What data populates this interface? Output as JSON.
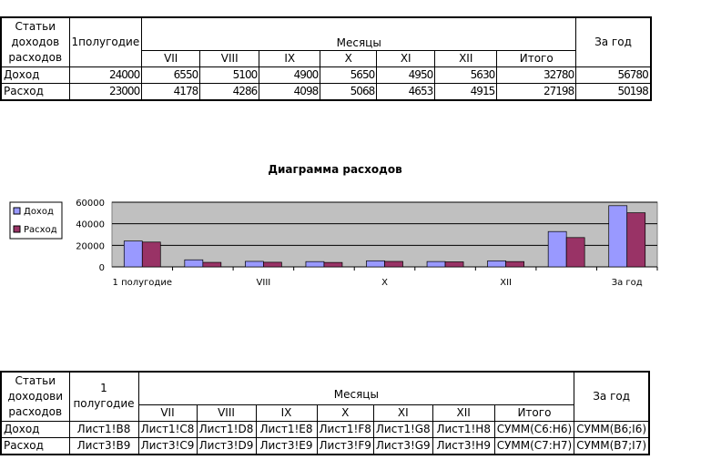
{
  "table1": {
    "header_row": "Статьи доходов расходов",
    "half": "1полугодие",
    "months_label": "Месяцы",
    "year": "За год",
    "months": [
      "VII",
      "VIII",
      "IX",
      "X",
      "XI",
      "XII",
      "Итого"
    ],
    "rows": [
      {
        "label": "Доход",
        "cells": [
          "24000",
          "6550",
          "5100",
          "4900",
          "5650",
          "4950",
          "5630",
          "32780",
          "56780"
        ]
      },
      {
        "label": "Расход",
        "cells": [
          "23000",
          "4178",
          "4286",
          "4098",
          "5068",
          "4653",
          "4915",
          "27198",
          "50198"
        ]
      }
    ]
  },
  "chart_data": {
    "type": "bar",
    "title": "Диаграмма расходов",
    "categories": [
      "1 полугодие",
      "VII",
      "VIII",
      "IX",
      "X",
      "XI",
      "XII",
      "Итого",
      "За год"
    ],
    "tick_labels": [
      "1 полугодие",
      "VIII",
      "X",
      "XII",
      "За год"
    ],
    "series": [
      {
        "name": "Доход",
        "color": "#9999ff",
        "values": [
          24000,
          6550,
          5100,
          4900,
          5650,
          4950,
          5630,
          32780,
          56780
        ]
      },
      {
        "name": "Расход",
        "color": "#993366",
        "values": [
          23000,
          4178,
          4286,
          4098,
          5068,
          4653,
          4915,
          27198,
          50198
        ]
      }
    ],
    "ylim": [
      0,
      60000
    ],
    "yticks": [
      "0",
      "20000",
      "40000",
      "60000"
    ],
    "legend": "left",
    "plot_bg": "#c0c0c0"
  },
  "table2": {
    "header_row": "Статьи доходови расходов",
    "half": "1 полугодие",
    "months_label": "Месяцы",
    "year": "За год",
    "months": [
      "VII",
      "VIII",
      "IX",
      "X",
      "XI",
      "XII",
      "Итого"
    ],
    "rows": [
      {
        "label": "Доход",
        "cells": [
          "Лист1!B8",
          "Лист1!C8",
          "Лист1!D8",
          "Лист1!E8",
          "Лист1!F8",
          "Лист1!G8",
          "Лист1!H8",
          "СУММ(C6:H6)",
          "СУММ(B6;I6)"
        ]
      },
      {
        "label": "Расход",
        "cells": [
          "Лист3!B9",
          "Лист3!C9",
          "Лист3!D9",
          "Лист3!E9",
          "Лист3!F9",
          "Лист3!G9",
          "Лист3!H9",
          "СУММ(C7:H7)",
          "СУММ(B7;I7)"
        ]
      }
    ]
  }
}
